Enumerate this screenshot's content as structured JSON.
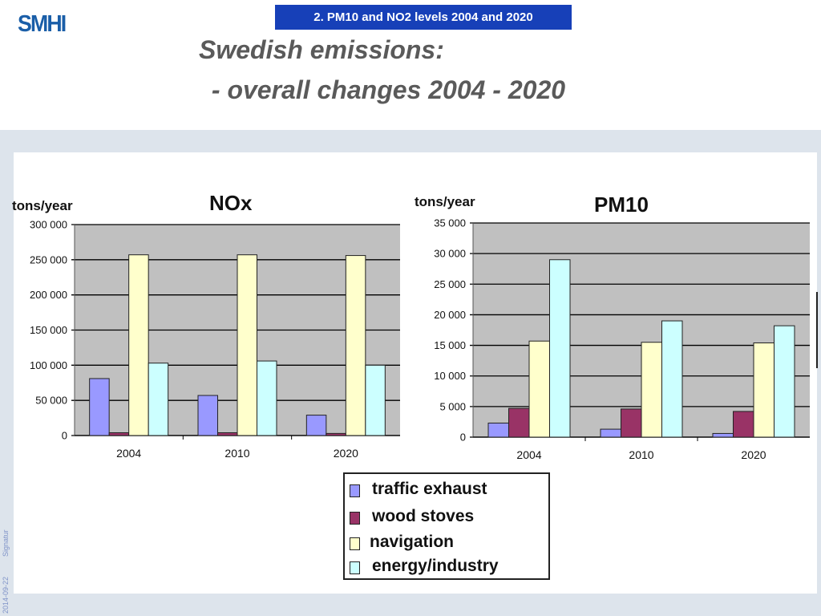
{
  "header": {
    "logo": "SMHI",
    "tag": "2. PM10 and NO2 levels 2004 and 2020",
    "title_line1": "Swedish emissions:",
    "title_line2": " - overall changes 2004 - 2020"
  },
  "footer": {
    "date": "2014-09-22",
    "signature": "Signatur"
  },
  "colors": {
    "traffic exhaust": "#9999ff",
    "wood stoves": "#993366",
    "navigation": "#ffffcc",
    "energy/industry": "#ccffff",
    "plot_bg": "#c0c0c0"
  },
  "legend": {
    "items": [
      "traffic exhaust",
      "wood stoves",
      "navigation",
      "energy/industry"
    ]
  },
  "chart_data": [
    {
      "type": "bar",
      "title": "NOx",
      "ylabel": "tons/year",
      "categories": [
        "2004",
        "2010",
        "2020"
      ],
      "ylim": [
        0,
        300000
      ],
      "yticks": [
        "0",
        "50 000",
        "100 000",
        "150 000",
        "200 000",
        "250 000",
        "300 000"
      ],
      "grid": true,
      "series": [
        {
          "name": "traffic exhaust",
          "values": [
            81000,
            57000,
            29000
          ]
        },
        {
          "name": "wood stoves",
          "values": [
            4000,
            4000,
            3000
          ]
        },
        {
          "name": "navigation",
          "values": [
            257000,
            257000,
            256000
          ]
        },
        {
          "name": "energy/industry",
          "values": [
            103000,
            106000,
            100000
          ]
        }
      ]
    },
    {
      "type": "bar",
      "title": "PM10",
      "ylabel": "tons/year",
      "categories": [
        "2004",
        "2010",
        "2020"
      ],
      "ylim": [
        0,
        35000
      ],
      "yticks": [
        "0",
        "5 000",
        "10 000",
        "15 000",
        "20 000",
        "25 000",
        "30 000",
        "35 000"
      ],
      "grid": true,
      "series": [
        {
          "name": "traffic exhaust",
          "values": [
            2300,
            1300,
            600
          ]
        },
        {
          "name": "wood stoves",
          "values": [
            4700,
            4600,
            4200
          ]
        },
        {
          "name": "navigation",
          "values": [
            15700,
            15500,
            15400
          ]
        },
        {
          "name": "energy/industry",
          "values": [
            29000,
            19000,
            18200
          ]
        }
      ]
    }
  ]
}
